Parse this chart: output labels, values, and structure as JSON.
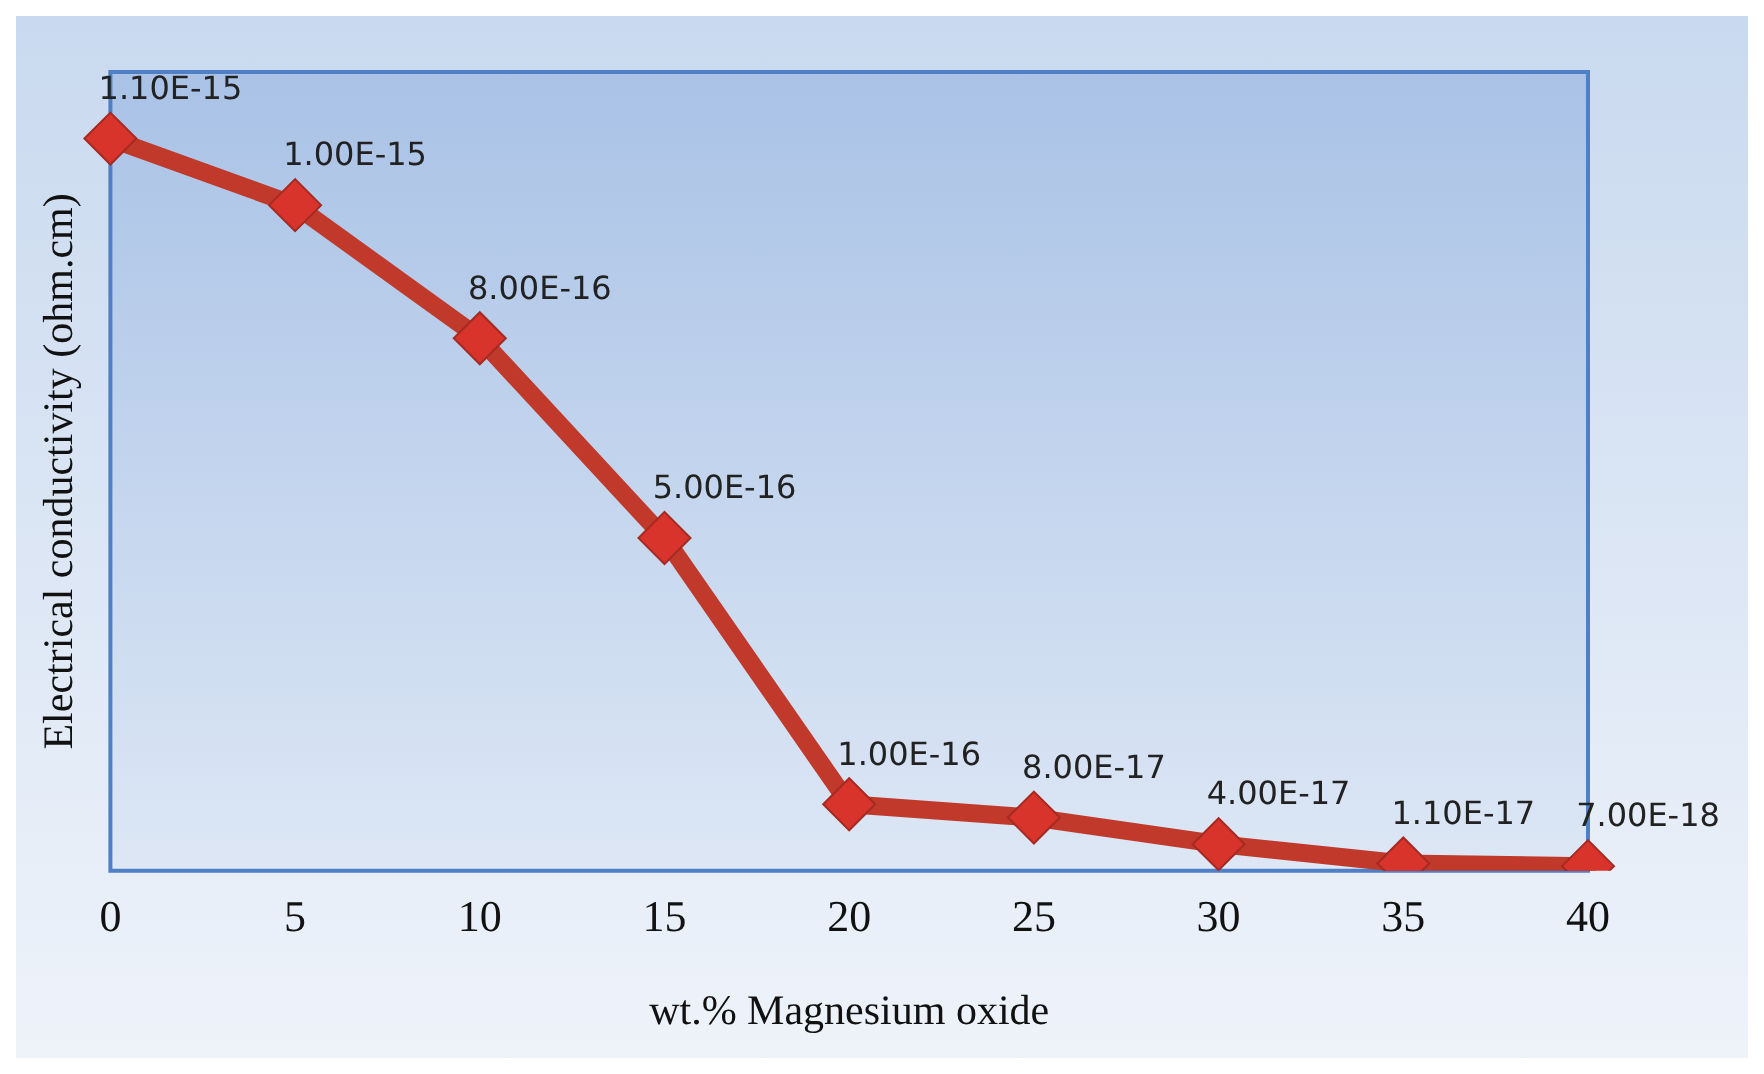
{
  "chart_data": {
    "type": "line",
    "xlabel": "wt.% Magnesium oxide",
    "ylabel": "Electrical conductivity (ohm.cm)",
    "categories": [
      "0",
      "5",
      "10",
      "15",
      "20",
      "25",
      "30",
      "35",
      "40"
    ],
    "series": [
      {
        "color": "#c0392b",
        "values": [
          1.1e-15,
          1e-15,
          8e-16,
          5e-16,
          1e-16,
          8e-17,
          4e-17,
          1.1e-17,
          7e-18
        ],
        "value_labels": [
          "1.10E-15",
          "1.00E-15",
          "8.00E-16",
          "5.00E-16",
          "1.00E-16",
          "8.00E-17",
          "4.00E-17",
          "1.10E-17",
          "7.00E-18"
        ]
      }
    ],
    "ylim": [
      0,
      1.2e-15
    ],
    "tick_labels": "x",
    "marker": "diamond",
    "line_style": "solid",
    "grid": false,
    "legend": false
  }
}
